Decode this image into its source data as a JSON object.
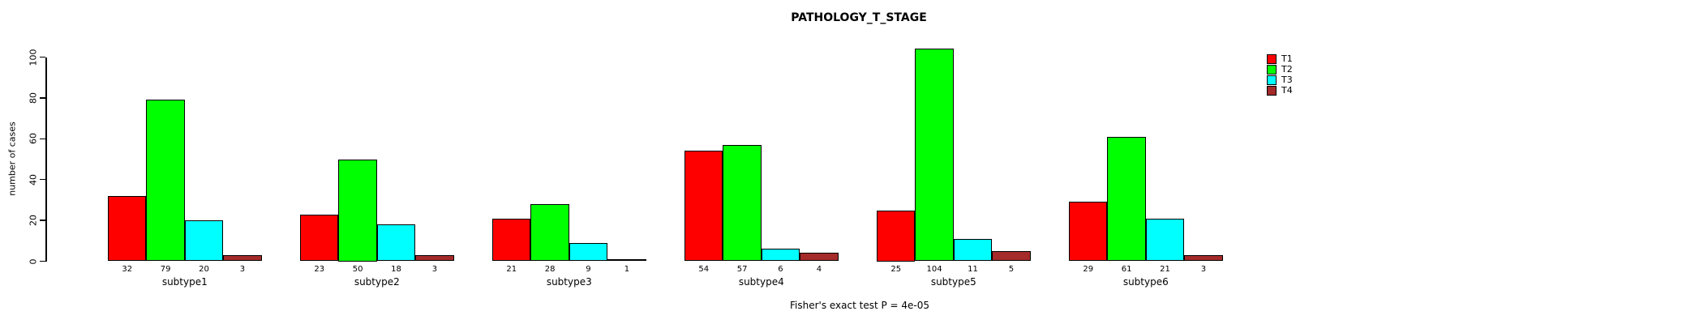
{
  "title": "PATHOLOGY_T_STAGE",
  "ylabel": "number of cases",
  "footer": "Fisher's exact test P = 4e-05",
  "colors": {
    "background": "#ffffff",
    "axis": "#000000",
    "bar_border": "#000000",
    "t1": "#ff0000",
    "t2": "#00ff00",
    "t3": "#00ffff",
    "t4": "#a52a2a"
  },
  "legend": {
    "position": "right",
    "labels": [
      "T1",
      "T2",
      "T3",
      "T4"
    ]
  },
  "chart_data": {
    "type": "bar",
    "grouped": true,
    "title": "PATHOLOGY_T_STAGE",
    "xlabel": "",
    "ylabel": "number of cases",
    "categories": [
      "subtype1",
      "subtype2",
      "subtype3",
      "subtype4",
      "subtype5",
      "subtype6"
    ],
    "series": [
      {
        "name": "T1",
        "color": "#ff0000",
        "values": [
          32,
          23,
          21,
          54,
          25,
          29
        ]
      },
      {
        "name": "T2",
        "color": "#00ff00",
        "values": [
          79,
          50,
          28,
          57,
          104,
          61
        ]
      },
      {
        "name": "T3",
        "color": "#00ffff",
        "values": [
          20,
          18,
          9,
          6,
          11,
          21
        ]
      },
      {
        "name": "T4",
        "color": "#a52a2a",
        "values": [
          3,
          3,
          1,
          4,
          5,
          3
        ]
      }
    ],
    "bar_value_labels_shown": true,
    "yticks": [
      0,
      20,
      40,
      60,
      80,
      100
    ],
    "ylim": [
      0,
      100
    ],
    "grid": false,
    "legend_position": "right",
    "annotation": "Fisher's exact test P = 4e-05"
  }
}
